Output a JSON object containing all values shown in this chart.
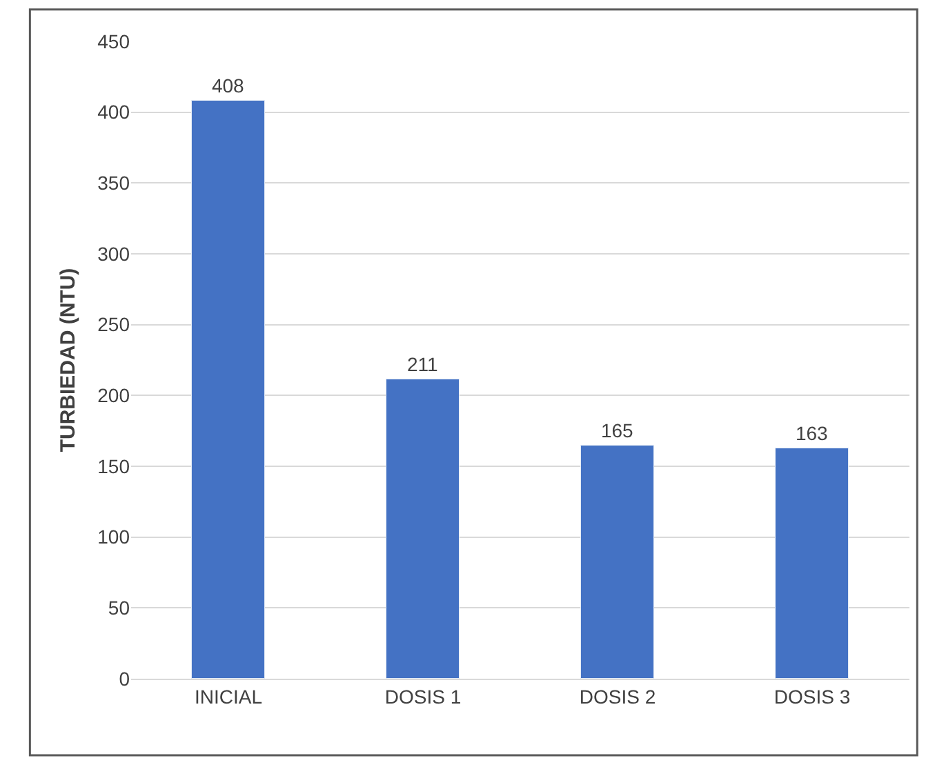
{
  "chart_data": {
    "type": "bar",
    "ylabel": "TURBIEDAD (NTU)",
    "categories": [
      "INICIAL",
      "DOSIS 1",
      "DOSIS 2",
      "DOSIS 3"
    ],
    "values": [
      408,
      211,
      165,
      163
    ],
    "color": "#4472c4",
    "ylim": [
      0,
      450
    ],
    "yticks": [
      0,
      50,
      100,
      150,
      200,
      250,
      300,
      350,
      400,
      450
    ],
    "grid": "y",
    "data_labels": true
  }
}
